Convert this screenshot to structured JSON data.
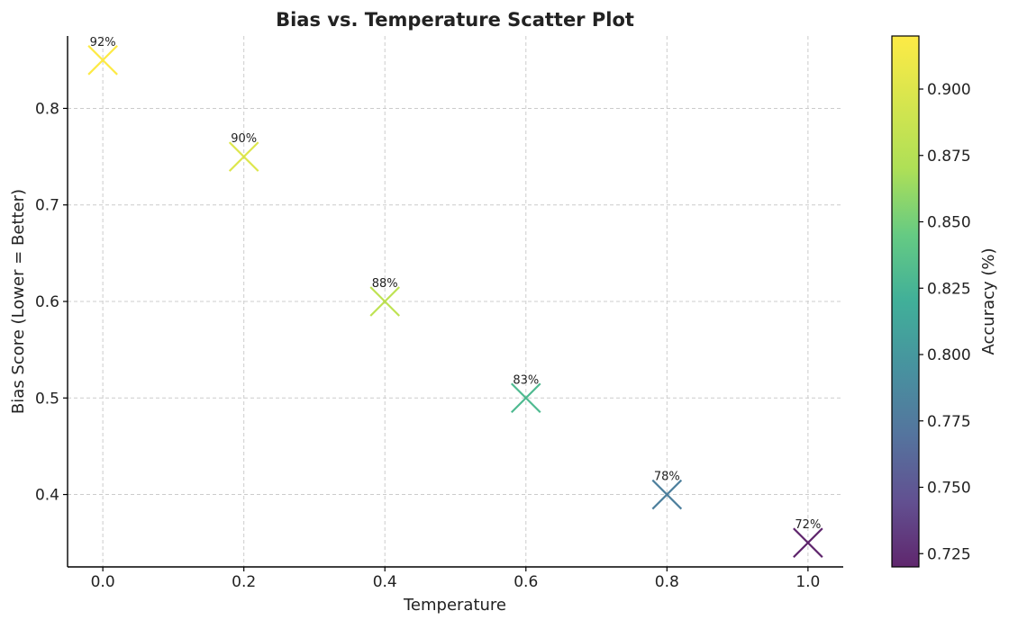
{
  "chart_data": {
    "type": "scatter",
    "title": "Bias vs. Temperature Scatter Plot",
    "xlabel": "Temperature",
    "ylabel": "Bias Score (Lower = Better)",
    "xlim": [
      -0.05,
      1.05
    ],
    "ylim": [
      0.325,
      0.875
    ],
    "xticks": [
      0.0,
      0.2,
      0.4,
      0.6,
      0.8,
      1.0
    ],
    "xtick_labels": [
      "0.0",
      "0.2",
      "0.4",
      "0.6",
      "0.8",
      "1.0"
    ],
    "yticks": [
      0.4,
      0.5,
      0.6,
      0.7,
      0.8
    ],
    "ytick_labels": [
      "0.4",
      "0.5",
      "0.6",
      "0.7",
      "0.8"
    ],
    "grid": true,
    "marker": "x",
    "points": [
      {
        "x": 0.0,
        "y": 0.85,
        "accuracy": 0.92,
        "label": "92%"
      },
      {
        "x": 0.2,
        "y": 0.75,
        "accuracy": 0.9,
        "label": "90%"
      },
      {
        "x": 0.4,
        "y": 0.6,
        "accuracy": 0.88,
        "label": "88%"
      },
      {
        "x": 0.6,
        "y": 0.5,
        "accuracy": 0.83,
        "label": "83%"
      },
      {
        "x": 0.8,
        "y": 0.4,
        "accuracy": 0.78,
        "label": "78%"
      },
      {
        "x": 1.0,
        "y": 0.35,
        "accuracy": 0.72,
        "label": "72%"
      }
    ],
    "colorbar": {
      "label": "Accuracy (%)",
      "colormap": "viridis",
      "range": [
        0.72,
        0.92
      ],
      "ticks": [
        0.725,
        0.75,
        0.775,
        0.8,
        0.825,
        0.85,
        0.875,
        0.9
      ],
      "tick_labels": [
        "0.725",
        "0.750",
        "0.775",
        "0.800",
        "0.825",
        "0.850",
        "0.875",
        "0.900"
      ]
    }
  }
}
